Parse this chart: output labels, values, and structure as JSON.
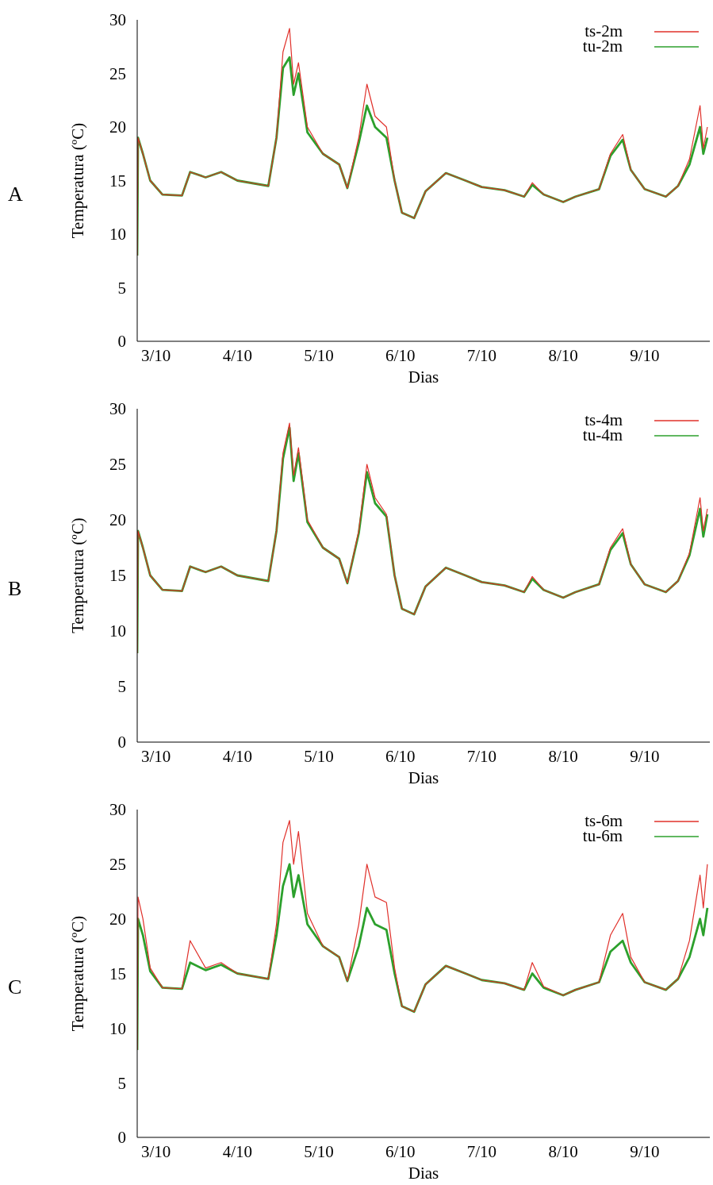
{
  "chart_data": [
    {
      "type": "line",
      "annotations": [
        "A"
      ],
      "xlabel": "Dias",
      "ylabel": "Temperatura (ºC)",
      "xlim": [
        "--10-02T18:29",
        "--10-09T19:12"
      ],
      "ylim": [
        0,
        30
      ],
      "xticks": [
        {
          "value": "--10-03",
          "label": "3/10"
        },
        {
          "value": "--10-04",
          "label": "4/10"
        },
        {
          "value": "--10-05",
          "label": "5/10"
        },
        {
          "value": "--10-06",
          "label": "6/10"
        },
        {
          "value": "--10-07",
          "label": "7/10"
        },
        {
          "value": "--10-08",
          "label": "8/10"
        },
        {
          "value": "--10-09",
          "label": "9/10"
        }
      ],
      "yticks": [
        0,
        5,
        10,
        15,
        20,
        25,
        30
      ],
      "legend": "top right",
      "marker": "none",
      "x": [
        "--10-02T18:29",
        "--10-02T18:43",
        "--10-02T20:10",
        "--10-02T22:19",
        "--10-03T01:55",
        "--10-03T07:41",
        "--10-03T10:05",
        "--10-03T14:38",
        "--10-03T19:12",
        "--10-04T00:00",
        "--10-04T09:07",
        "--10-04T11:31",
        "--10-04T13:26",
        "--10-04T15:22",
        "--10-04T16:34",
        "--10-04T18:00",
        "--10-04T20:38",
        "--10-05T01:12",
        "--10-05T06:00",
        "--10-05T08:24",
        "--10-05T11:46",
        "--10-05T14:10",
        "--10-05T16:34",
        "--10-05T19:55",
        "--10-05T22:19",
        "--10-06T00:29",
        "--10-06T04:05",
        "--10-06T07:26",
        "--10-06T13:26",
        "--10-06T19:12",
        "--10-07T00:00",
        "--10-07T06:43",
        "--10-07T12:29",
        "--10-07T14:53",
        "--10-07T18:14",
        "--10-08T00:00",
        "--10-08T03:36",
        "--10-08T10:34",
        "--10-08T13:55",
        "--10-08T17:31",
        "--10-08T19:55",
        "--10-09T00:00",
        "--10-09T06:14",
        "--10-09T09:50",
        "--10-09T13:12",
        "--10-09T16:19",
        "--10-09T17:17",
        "--10-09T18:29"
      ],
      "series": [
        {
          "name": "ts-2m",
          "color": "#e0302a",
          "values": [
            8,
            19,
            17.5,
            15,
            13.7,
            13.6,
            15.8,
            15.3,
            15.8,
            15,
            14.5,
            19,
            27,
            29.2,
            24,
            26,
            20,
            17.5,
            16.5,
            14.3,
            19,
            24,
            21,
            20,
            15,
            12,
            11.5,
            14,
            15.7,
            15,
            14.4,
            14.1,
            13.5,
            14.8,
            13.7,
            13,
            13.5,
            14.2,
            17.5,
            19.3,
            16,
            14.2,
            13.5,
            14.5,
            17,
            22,
            18,
            20
          ]
        },
        {
          "name": "tu-2m",
          "color": "#2ca02c",
          "values": [
            8,
            19,
            17.5,
            15,
            13.7,
            13.6,
            15.8,
            15.3,
            15.8,
            15,
            14.5,
            19,
            25.5,
            26.5,
            23,
            25,
            19.5,
            17.5,
            16.5,
            14.3,
            18.5,
            22,
            20,
            19,
            15,
            12,
            11.5,
            14,
            15.7,
            15,
            14.4,
            14.1,
            13.5,
            14.6,
            13.7,
            13,
            13.5,
            14.2,
            17.3,
            18.8,
            16,
            14.2,
            13.5,
            14.5,
            16.5,
            20,
            17.5,
            19
          ]
        }
      ]
    },
    {
      "type": "line",
      "annotations": [
        "B"
      ],
      "xlabel": "Dias",
      "ylabel": "Temperatura (ºC)",
      "xlim": [
        "--10-02T18:29",
        "--10-09T19:12"
      ],
      "ylim": [
        0,
        30
      ],
      "xticks": [
        {
          "value": "--10-03",
          "label": "3/10"
        },
        {
          "value": "--10-04",
          "label": "4/10"
        },
        {
          "value": "--10-05",
          "label": "5/10"
        },
        {
          "value": "--10-06",
          "label": "6/10"
        },
        {
          "value": "--10-07",
          "label": "7/10"
        },
        {
          "value": "--10-08",
          "label": "8/10"
        },
        {
          "value": "--10-09",
          "label": "9/10"
        }
      ],
      "yticks": [
        0,
        5,
        10,
        15,
        20,
        25,
        30
      ],
      "legend": "top right",
      "marker": "none",
      "x": [
        "--10-02T18:29",
        "--10-02T18:43",
        "--10-02T20:10",
        "--10-02T22:19",
        "--10-03T01:55",
        "--10-03T07:41",
        "--10-03T10:05",
        "--10-03T14:38",
        "--10-03T19:12",
        "--10-04T00:00",
        "--10-04T09:07",
        "--10-04T11:31",
        "--10-04T13:26",
        "--10-04T15:22",
        "--10-04T16:34",
        "--10-04T18:00",
        "--10-04T20:38",
        "--10-05T01:12",
        "--10-05T06:00",
        "--10-05T08:24",
        "--10-05T11:46",
        "--10-05T14:10",
        "--10-05T16:34",
        "--10-05T19:55",
        "--10-05T22:19",
        "--10-06T00:29",
        "--10-06T04:05",
        "--10-06T07:26",
        "--10-06T13:26",
        "--10-06T19:12",
        "--10-07T00:00",
        "--10-07T06:43",
        "--10-07T12:29",
        "--10-07T14:53",
        "--10-07T18:14",
        "--10-08T00:00",
        "--10-08T03:36",
        "--10-08T10:34",
        "--10-08T13:55",
        "--10-08T17:31",
        "--10-08T19:55",
        "--10-09T00:00",
        "--10-09T06:14",
        "--10-09T09:50",
        "--10-09T13:12",
        "--10-09T16:19",
        "--10-09T17:17",
        "--10-09T18:29"
      ],
      "series": [
        {
          "name": "ts-4m",
          "color": "#e0302a",
          "values": [
            8,
            19,
            17.5,
            15,
            13.7,
            13.6,
            15.8,
            15.3,
            15.8,
            15,
            14.5,
            19,
            26,
            28.7,
            24,
            26.5,
            20,
            17.5,
            16.5,
            14.3,
            19,
            25,
            22,
            20.5,
            15,
            12,
            11.5,
            14,
            15.7,
            15,
            14.4,
            14.1,
            13.5,
            14.9,
            13.7,
            13,
            13.5,
            14.2,
            17.5,
            19.2,
            16,
            14.2,
            13.5,
            14.5,
            17,
            22,
            19,
            21
          ]
        },
        {
          "name": "tu-4m",
          "color": "#2ca02c",
          "values": [
            8,
            19,
            17.5,
            15,
            13.7,
            13.6,
            15.8,
            15.3,
            15.8,
            15,
            14.5,
            19,
            25.5,
            28.3,
            23.5,
            26,
            19.8,
            17.5,
            16.5,
            14.3,
            18.8,
            24.3,
            21.5,
            20.3,
            15,
            12,
            11.5,
            14,
            15.7,
            15,
            14.4,
            14.1,
            13.5,
            14.7,
            13.7,
            13,
            13.5,
            14.2,
            17.3,
            18.8,
            16,
            14.2,
            13.5,
            14.5,
            16.8,
            21,
            18.5,
            20.5
          ]
        }
      ]
    },
    {
      "type": "line",
      "annotations": [
        "C"
      ],
      "xlabel": "Dias",
      "ylabel": "Temperatura (ºC)",
      "xlim": [
        "--10-02T18:29",
        "--10-09T19:12"
      ],
      "ylim": [
        0,
        30
      ],
      "xticks": [
        {
          "value": "--10-03",
          "label": "3/10"
        },
        {
          "value": "--10-04",
          "label": "4/10"
        },
        {
          "value": "--10-05",
          "label": "5/10"
        },
        {
          "value": "--10-06",
          "label": "6/10"
        },
        {
          "value": "--10-07",
          "label": "7/10"
        },
        {
          "value": "--10-08",
          "label": "8/10"
        },
        {
          "value": "--10-09",
          "label": "9/10"
        }
      ],
      "yticks": [
        0,
        5,
        10,
        15,
        20,
        25,
        30
      ],
      "legend": "top right",
      "marker": "none",
      "x": [
        "--10-02T18:29",
        "--10-02T18:43",
        "--10-02T20:10",
        "--10-02T22:19",
        "--10-03T01:55",
        "--10-03T07:41",
        "--10-03T10:05",
        "--10-03T14:38",
        "--10-03T19:12",
        "--10-04T00:00",
        "--10-04T09:07",
        "--10-04T11:31",
        "--10-04T13:26",
        "--10-04T15:22",
        "--10-04T16:34",
        "--10-04T18:00",
        "--10-04T20:38",
        "--10-05T01:12",
        "--10-05T06:00",
        "--10-05T08:24",
        "--10-05T11:46",
        "--10-05T14:10",
        "--10-05T16:34",
        "--10-05T19:55",
        "--10-05T22:19",
        "--10-06T00:29",
        "--10-06T04:05",
        "--10-06T07:26",
        "--10-06T13:26",
        "--10-06T19:12",
        "--10-07T00:00",
        "--10-07T06:43",
        "--10-07T12:29",
        "--10-07T14:53",
        "--10-07T18:14",
        "--10-08T00:00",
        "--10-08T03:36",
        "--10-08T10:34",
        "--10-08T13:55",
        "--10-08T17:31",
        "--10-08T19:55",
        "--10-09T00:00",
        "--10-09T06:14",
        "--10-09T09:50",
        "--10-09T13:12",
        "--10-09T16:19",
        "--10-09T17:17",
        "--10-09T18:29"
      ],
      "series": [
        {
          "name": "ts-6m",
          "color": "#e0302a",
          "values": [
            8,
            22,
            20,
            15.5,
            13.7,
            13.6,
            18,
            15.5,
            16,
            15,
            14.5,
            19.5,
            27,
            29,
            25,
            28,
            20.5,
            17.5,
            16.5,
            14.3,
            19.5,
            25,
            22,
            21.5,
            15.5,
            12,
            11.5,
            14,
            15.7,
            15,
            14.4,
            14.1,
            13.5,
            16,
            13.8,
            13,
            13.5,
            14.2,
            18.5,
            20.5,
            16.5,
            14.2,
            13.5,
            14.5,
            18,
            24,
            21,
            25
          ]
        },
        {
          "name": "tu-6m",
          "color": "#2ca02c",
          "values": [
            8,
            20,
            18.5,
            15.2,
            13.7,
            13.6,
            16,
            15.3,
            15.8,
            15,
            14.5,
            18.5,
            23,
            25,
            22,
            24,
            19.5,
            17.5,
            16.5,
            14.3,
            17.5,
            21,
            19.5,
            19,
            15,
            12,
            11.5,
            14,
            15.7,
            15,
            14.4,
            14.1,
            13.5,
            15,
            13.7,
            13,
            13.5,
            14.2,
            17,
            18,
            16,
            14.2,
            13.5,
            14.5,
            16.5,
            20,
            18.5,
            21
          ]
        }
      ]
    }
  ]
}
